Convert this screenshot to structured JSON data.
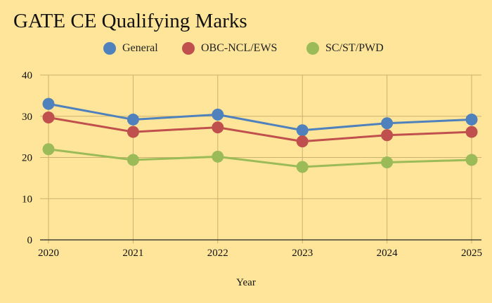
{
  "chart_data": {
    "type": "line",
    "title": "GATE CE Qualifying Marks",
    "xlabel": "Year",
    "ylabel": "",
    "x": [
      "2020",
      "2021",
      "2022",
      "2023",
      "2024",
      "2025"
    ],
    "ylim": [
      0,
      40
    ],
    "yticks": [
      "0",
      "10",
      "20",
      "30",
      "40"
    ],
    "grid": true,
    "legend_position": "top",
    "series": [
      {
        "name": "General",
        "color": "#4F81BD",
        "values": [
          33.0,
          29.2,
          30.4,
          26.6,
          28.3,
          29.2
        ]
      },
      {
        "name": "OBC-NCL/EWS",
        "color": "#C0504D",
        "values": [
          29.7,
          26.2,
          27.3,
          23.9,
          25.4,
          26.2
        ]
      },
      {
        "name": "SC/ST/PWD",
        "color": "#9BBB59",
        "values": [
          22.0,
          19.4,
          20.2,
          17.7,
          18.8,
          19.4
        ]
      }
    ]
  }
}
